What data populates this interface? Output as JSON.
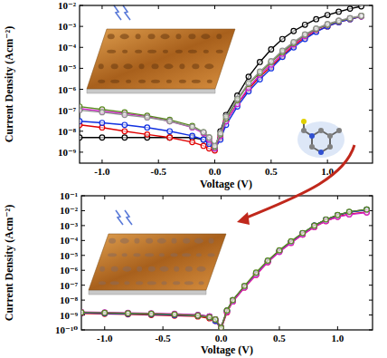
{
  "chart_data": [
    {
      "type": "line",
      "log": "y",
      "grid": false,
      "marker": "circle",
      "line_style": "solid",
      "x_label": "Voltage (V)",
      "y_label": "Current Density (Acm⁻²)",
      "xlim": [
        -1.2,
        1.4
      ],
      "ylim": [
        3e-10,
        0.01
      ],
      "xticks": [
        {
          "value": -1,
          "label": "-1.0"
        },
        -0.5,
        {
          "value": 0,
          "label": "0.0"
        },
        0.5,
        {
          "value": 1,
          "label": "1.0"
        }
      ],
      "yticks": [
        {
          "value": 1e-09,
          "label": "10⁻⁹"
        },
        {
          "value": 1e-08,
          "label": "10⁻⁸"
        },
        {
          "value": 1e-07,
          "label": "10⁻⁷"
        },
        {
          "value": 1e-06,
          "label": "10⁻⁶"
        },
        {
          "value": 1e-05,
          "label": "10⁻⁵"
        },
        {
          "value": 0.0001,
          "label": "10⁻⁴"
        },
        {
          "value": 0.001,
          "label": "10⁻³"
        },
        {
          "value": 0.01,
          "label": "10⁻²"
        }
      ],
      "x": [
        -1.2,
        -1.0,
        -0.8,
        -0.6,
        -0.4,
        -0.2,
        -0.1,
        -0.05,
        0,
        0.05,
        0.1,
        0.2,
        0.3,
        0.4,
        0.5,
        0.6,
        0.7,
        0.8,
        0.9,
        1.0,
        1.1,
        1.2,
        1.3
      ],
      "series": [
        {
          "color": "#000000",
          "values": [
            5e-09,
            5e-09,
            5e-09,
            5e-09,
            5e-09,
            5e-09,
            4e-09,
            3e-09,
            1.5e-09,
            1e-08,
            6e-08,
            5e-07,
            4e-06,
            2e-05,
            8e-05,
            0.00025,
            0.0006,
            0.0012,
            0.0022,
            0.0035,
            0.005,
            0.007,
            0.009
          ]
        },
        {
          "color": "#e00000",
          "values": [
            2e-08,
            1.5e-08,
            1e-08,
            7e-09,
            5e-09,
            3e-09,
            2e-09,
            1.5e-09,
            1.2e-09,
            5e-09,
            3e-08,
            2e-07,
            1e-06,
            4e-06,
            1.2e-05,
            4e-05,
            0.00012,
            0.0003,
            0.0006,
            0.001,
            0.0016,
            0.0022,
            0.003
          ]
        },
        {
          "color": "#1030e0",
          "values": [
            3e-08,
            2.5e-08,
            2e-08,
            1.5e-08,
            1e-08,
            6e-09,
            4e-09,
            2.5e-09,
            1.5e-09,
            4e-09,
            2e-08,
            1.5e-07,
            8e-07,
            3e-06,
            1e-05,
            3.5e-05,
            0.0001,
            0.00025,
            0.00055,
            0.001,
            0.0016,
            0.0022,
            0.003
          ]
        },
        {
          "color": "#d020c8",
          "values": [
            1.2e-07,
            9e-08,
            7e-08,
            5e-08,
            3e-08,
            1.5e-08,
            8e-09,
            4e-09,
            1.5e-09,
            6e-09,
            3e-08,
            2e-07,
            1.2e-06,
            5e-06,
            1.5e-05,
            5e-05,
            0.00014,
            0.00035,
            0.0007,
            0.0012,
            0.0018,
            0.0024,
            0.003
          ]
        },
        {
          "color": "#5a8a20",
          "values": [
            1.5e-07,
            1.1e-07,
            8e-08,
            5.5e-08,
            3.5e-08,
            1.8e-08,
            9e-09,
            5e-09,
            1.8e-09,
            7e-09,
            4e-08,
            3e-07,
            1.8e-06,
            6e-06,
            2e-05,
            6e-05,
            0.00016,
            0.0004,
            0.00075,
            0.0012,
            0.0018,
            0.0024,
            0.0032
          ]
        },
        {
          "color": "#909090",
          "values": [
            1e-07,
            8e-08,
            6e-08,
            4.5e-08,
            3e-08,
            1.6e-08,
            9e-09,
            5e-09,
            2e-09,
            8e-09,
            5e-08,
            3.5e-07,
            2e-06,
            7e-06,
            2.2e-05,
            7e-05,
            0.00018,
            0.00042,
            0.0008,
            0.0013,
            0.0019,
            0.0025,
            0.0032
          ]
        }
      ]
    },
    {
      "type": "line",
      "log": "y",
      "grid": false,
      "marker": "circle",
      "line_style": "solid",
      "x_label": "Voltage (V)",
      "y_label": "Current Density (Acm⁻²)",
      "xlim": [
        -1.2,
        1.3
      ],
      "ylim": [
        1e-10,
        0.1
      ],
      "xticks": [
        {
          "value": -1,
          "label": "-1.0"
        },
        -0.5,
        {
          "value": 0,
          "label": "0.0"
        },
        0.5,
        {
          "value": 1,
          "label": "1.0"
        }
      ],
      "yticks": [
        {
          "value": 1e-10,
          "label": "10⁻¹⁰"
        },
        {
          "value": 1e-09,
          "label": "10⁻⁹"
        },
        {
          "value": 1e-08,
          "label": "10⁻⁸"
        },
        {
          "value": 1e-07,
          "label": "10⁻⁷"
        },
        {
          "value": 1e-06,
          "label": "10⁻⁶"
        },
        {
          "value": 1e-05,
          "label": "10⁻⁵"
        },
        {
          "value": 0.0001,
          "label": "10⁻⁴"
        },
        {
          "value": 0.001,
          "label": "10⁻³"
        },
        {
          "value": 0.01,
          "label": "10⁻²"
        },
        {
          "value": 0.1,
          "label": "10⁻¹"
        }
      ],
      "x": [
        -1.2,
        -1.0,
        -0.8,
        -0.6,
        -0.4,
        -0.2,
        -0.1,
        -0.05,
        0,
        0.05,
        0.1,
        0.2,
        0.3,
        0.4,
        0.5,
        0.6,
        0.7,
        0.8,
        0.9,
        1.0,
        1.1,
        1.25
      ],
      "series": [
        {
          "color": "#000000",
          "values": [
            1.5e-09,
            1.4e-09,
            1.3e-09,
            1.2e-09,
            1.1e-09,
            1e-09,
            8e-10,
            5e-10,
            1.5e-10,
            2e-09,
            1e-08,
            8e-08,
            6e-07,
            4e-06,
            2e-05,
            8e-05,
            0.0003,
            0.001,
            0.0025,
            0.005,
            0.008,
            0.012
          ]
        },
        {
          "color": "#e00000",
          "values": [
            1.3e-09,
            1.2e-09,
            1.1e-09,
            1e-09,
            9e-10,
            8e-10,
            6e-10,
            4e-10,
            1.2e-10,
            1.5e-09,
            8e-09,
            7e-08,
            5e-07,
            3.5e-06,
            1.8e-05,
            7e-05,
            0.00025,
            0.0008,
            0.002,
            0.004,
            0.006,
            0.008
          ]
        },
        {
          "color": "#1030e0",
          "values": [
            1.4e-09,
            1.3e-09,
            1.2e-09,
            1.1e-09,
            1e-09,
            9e-10,
            7e-10,
            4e-10,
            1.3e-10,
            1.8e-09,
            9e-09,
            8e-08,
            6e-07,
            4e-06,
            2e-05,
            8e-05,
            0.0003,
            0.001,
            0.0025,
            0.005,
            0.008,
            0.011
          ]
        },
        {
          "color": "#d020c8",
          "values": [
            1.6e-09,
            1.5e-09,
            1.4e-09,
            1.3e-09,
            1.2e-09,
            1e-09,
            8e-10,
            5e-10,
            1.5e-10,
            1.6e-09,
            8e-09,
            7e-08,
            5e-07,
            3.5e-06,
            1.7e-05,
            7e-05,
            0.00025,
            0.0008,
            0.002,
            0.0038,
            0.0055,
            0.0075
          ]
        },
        {
          "color": "#5a8a20",
          "values": [
            1.5e-09,
            1.4e-09,
            1.3e-09,
            1.2e-09,
            1.1e-09,
            9e-10,
            7e-10,
            5e-10,
            1.4e-10,
            2e-09,
            1e-08,
            9e-08,
            7e-07,
            4.5e-06,
            2.2e-05,
            9e-05,
            0.00032,
            0.001,
            0.0026,
            0.0052,
            0.0085,
            0.012
          ]
        }
      ]
    }
  ]
}
